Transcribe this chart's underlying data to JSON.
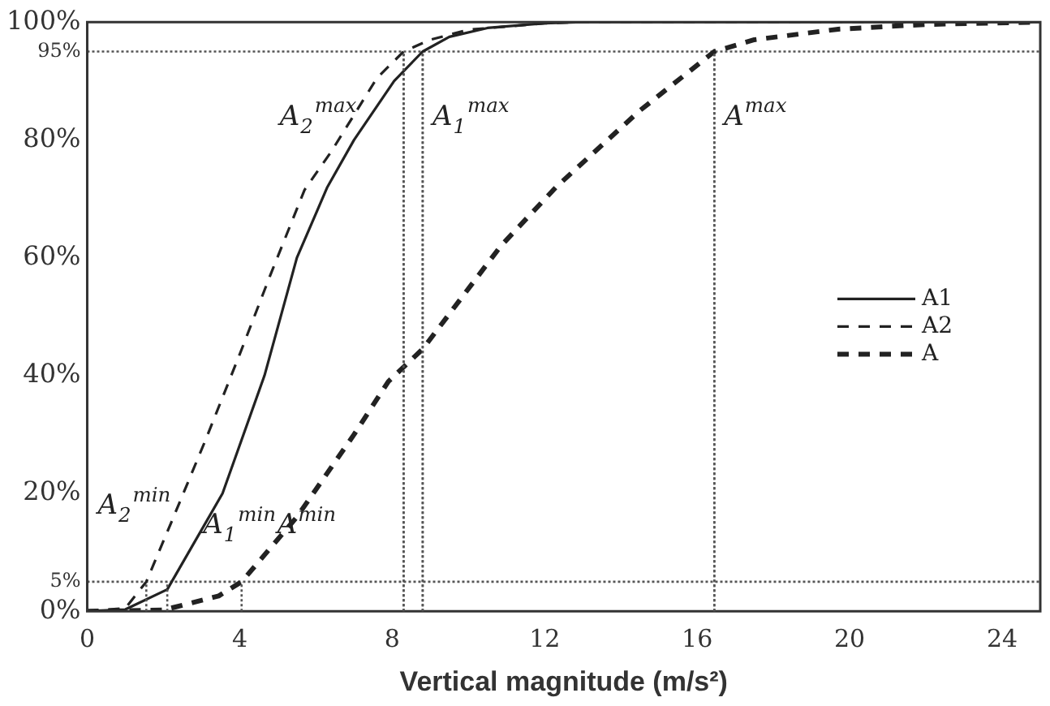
{
  "chart_data": {
    "type": "line",
    "xlabel": "Vertical magnitude (m/s²)",
    "xlim": [
      0,
      25
    ],
    "xticks": [
      0,
      4,
      8,
      12,
      16,
      20,
      24
    ],
    "ylim": [
      0,
      100
    ],
    "yticks": [
      {
        "value": 0,
        "label": "0%"
      },
      {
        "value": 5,
        "label": "5%"
      },
      {
        "value": 20,
        "label": "20%"
      },
      {
        "value": 40,
        "label": "40%"
      },
      {
        "value": 60,
        "label": "60%"
      },
      {
        "value": 80,
        "label": "80%"
      },
      {
        "value": 95,
        "label": "95%"
      },
      {
        "value": 100,
        "label": "100%"
      }
    ],
    "grid": false,
    "legend": "right",
    "marker": "none",
    "series": [
      {
        "name": "A1",
        "color": "#222222",
        "line_style": "solid",
        "x": [
          0,
          1,
          2.1,
          3.55,
          4.65,
          5.5,
          6.3,
          7,
          8.05,
          8.8,
          9.5,
          10.5,
          12,
          13,
          25
        ],
        "values": [
          0,
          0.3,
          3.7,
          20,
          40,
          60,
          72,
          80,
          90,
          95,
          97.5,
          99,
          99.8,
          100,
          100
        ]
      },
      {
        "name": "A2",
        "color": "#222222",
        "line_style": "dashed",
        "x": [
          0,
          1,
          1.55,
          2.2,
          3.1,
          4,
          4.8,
          5.7,
          6.4,
          7.6,
          8.3,
          9,
          10,
          12,
          13,
          25
        ],
        "values": [
          0,
          0.5,
          5,
          15,
          29,
          43.6,
          57,
          71.5,
          78,
          90.5,
          95,
          97,
          98.7,
          99.8,
          100,
          100
        ]
      },
      {
        "name": "A",
        "color": "#222222",
        "line_style": "dashed",
        "x": [
          0,
          2,
          3.45,
          4.05,
          5.5,
          7,
          7.9,
          8.8,
          10.85,
          12.3,
          14.5,
          16.45,
          17.5,
          19.7,
          22,
          25
        ],
        "values": [
          0,
          0.2,
          2.6,
          5,
          16,
          30,
          39,
          44.5,
          62,
          72,
          85,
          95,
          97,
          98.8,
          99.6,
          100
        ]
      }
    ],
    "ref_lines": [
      {
        "axis": "y",
        "value": 95,
        "line_style": "dotted"
      },
      {
        "axis": "y",
        "value": 5,
        "line_style": "dotted"
      },
      {
        "axis": "x",
        "value": 8.3,
        "line_style": "dotted"
      },
      {
        "axis": "x",
        "value": 8.8,
        "line_style": "dotted"
      },
      {
        "axis": "x",
        "value": 16.45,
        "line_style": "dotted"
      }
    ],
    "annotations": [
      {
        "text": "A$_{2}$$^{max}$",
        "x": 8.3,
        "y": 95
      },
      {
        "text": "A$_{1}$$^{max}$",
        "x": 8.8,
        "y": 95
      },
      {
        "text": "A$^{max}$",
        "x": 16.45,
        "y": 95
      },
      {
        "text": "A$_{2}$$^{min}$",
        "x": 1.55,
        "y": 5
      },
      {
        "text": "A$_{1}$$^{min}$",
        "x": 2.1,
        "y": 5
      },
      {
        "text": "A$^{min}$",
        "x": 4.05,
        "y": 5
      }
    ]
  }
}
